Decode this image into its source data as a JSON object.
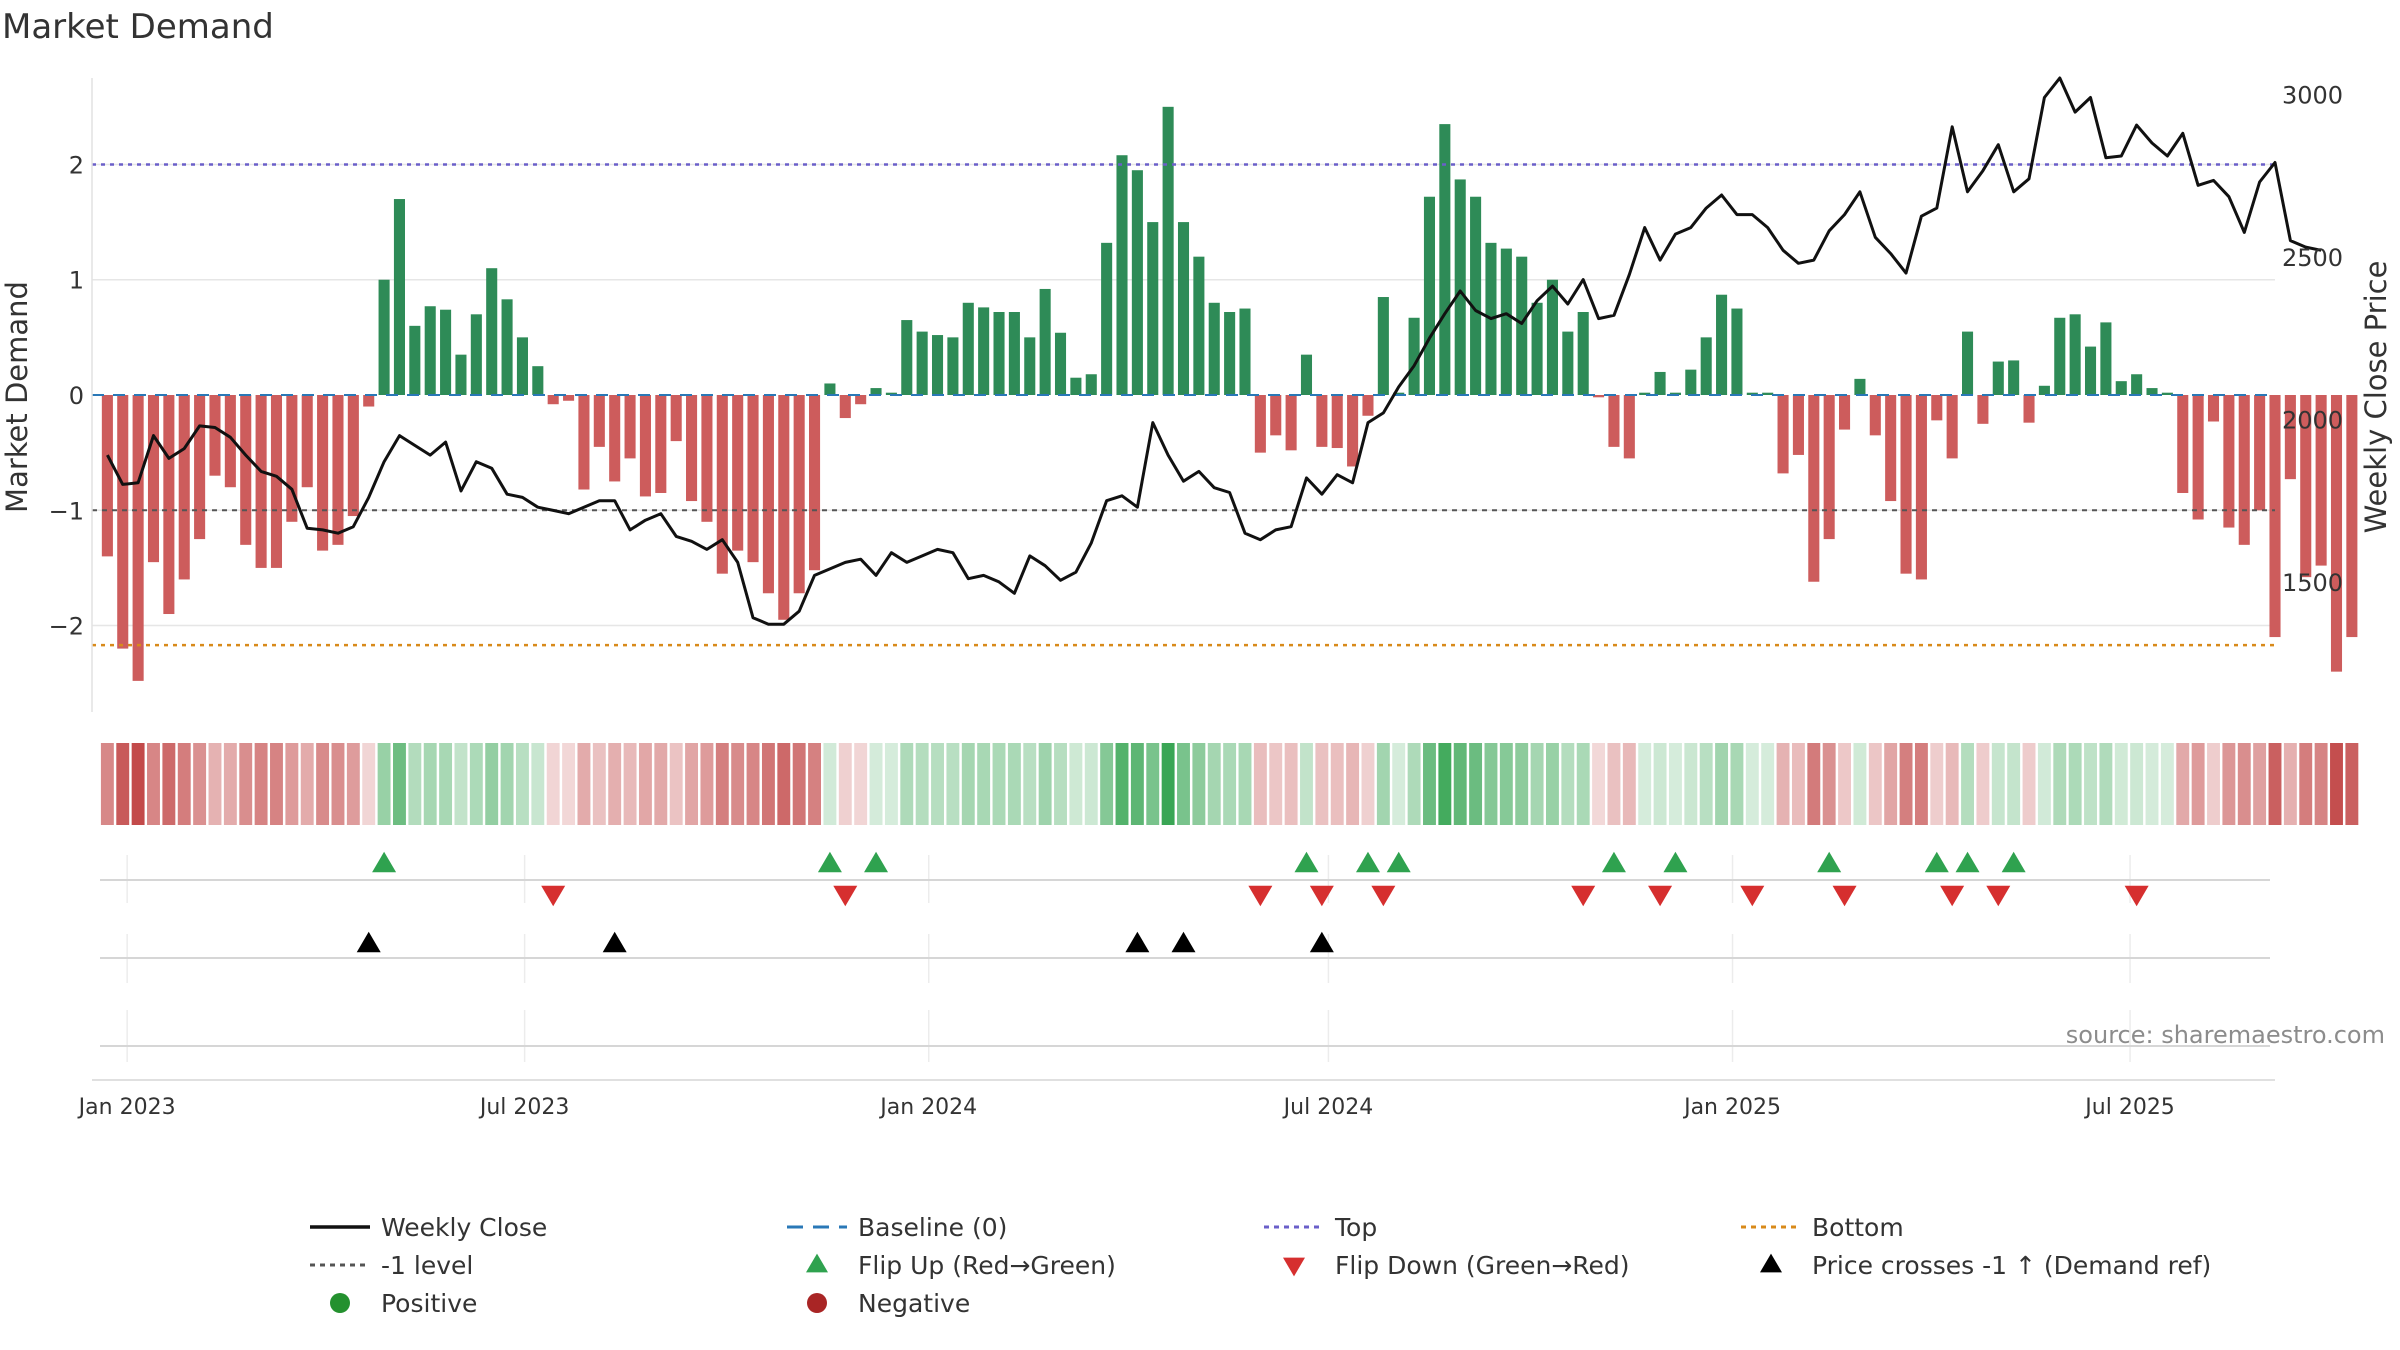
{
  "chart_data": {
    "type": "bar+line",
    "title": "Market Demand",
    "ylabel_left": "Market Demand",
    "ylabel_right": "Weekly Close Price",
    "ylim_left": [
      -2.75,
      2.75
    ],
    "ylim_right": [
      1100,
      3050
    ],
    "y_ticks_left": [
      2,
      1,
      0,
      -1,
      -2
    ],
    "y_tick_labels_left": [
      "2",
      "1",
      "0",
      "−1",
      "−2"
    ],
    "y_ticks_right": [
      3000,
      2500,
      2000,
      1500
    ],
    "y_tick_labels_right": [
      "3000",
      "2500",
      "2000",
      "1500"
    ],
    "x_start_date": "2022-12-23",
    "x_step_days": 7,
    "x_range": [
      "2022-12-16",
      "2025-09-05"
    ],
    "x_ticks": [
      {
        "date": "2023-01-01",
        "label": "Jan 2023"
      },
      {
        "date": "2023-07-01",
        "label": "Jul 2023"
      },
      {
        "date": "2024-01-01",
        "label": "Jan 2024"
      },
      {
        "date": "2024-07-01",
        "label": "Jul 2024"
      },
      {
        "date": "2025-01-01",
        "label": "Jan 2025"
      },
      {
        "date": "2025-07-01",
        "label": "Jul 2025"
      }
    ],
    "reference_lines": {
      "top": 2.0,
      "bottom": -2.17,
      "minus_one": -1.0,
      "baseline": 0
    },
    "demand": [
      -1.4,
      -2.2,
      -2.48,
      -1.45,
      -1.9,
      -1.6,
      -1.25,
      -0.7,
      -0.8,
      -1.3,
      -1.5,
      -1.5,
      -1.1,
      -0.8,
      -1.35,
      -1.3,
      -1.05,
      -0.1,
      1.0,
      1.7,
      0.6,
      0.77,
      0.74,
      0.35,
      0.7,
      1.1,
      0.83,
      0.5,
      0.25,
      -0.08,
      -0.05,
      -0.82,
      -0.45,
      -0.75,
      -0.55,
      -0.88,
      -0.85,
      -0.4,
      -0.92,
      -1.1,
      -1.55,
      -1.35,
      -1.45,
      -1.72,
      -1.95,
      -1.72,
      -1.52,
      0.1,
      -0.2,
      -0.08,
      0.06,
      0.02,
      0.65,
      0.55,
      0.52,
      0.5,
      0.8,
      0.76,
      0.72,
      0.72,
      0.5,
      0.92,
      0.54,
      0.15,
      0.18,
      1.32,
      2.08,
      1.95,
      1.5,
      2.5,
      1.5,
      1.2,
      0.8,
      0.72,
      0.75,
      -0.5,
      -0.35,
      -0.48,
      0.35,
      -0.45,
      -0.46,
      -0.62,
      -0.18,
      0.85,
      0.02,
      0.67,
      1.72,
      2.35,
      1.87,
      1.72,
      1.32,
      1.27,
      1.2,
      0.8,
      1.0,
      0.55,
      0.72,
      -0.02,
      -0.45,
      -0.55,
      0.02,
      0.2,
      0.02,
      0.22,
      0.5,
      0.87,
      0.75,
      0.02,
      0.02,
      -0.68,
      -0.52,
      -1.62,
      -1.25,
      -0.3,
      0.14,
      -0.35,
      -0.92,
      -1.55,
      -1.6,
      -0.22,
      -0.55,
      0.55,
      -0.25,
      0.29,
      0.3,
      -0.24,
      0.08,
      0.67,
      0.7,
      0.42,
      0.63,
      0.12,
      0.18,
      0.06,
      0.02,
      -0.85,
      -1.08,
      -0.23,
      -1.15,
      -1.3,
      -1.0,
      -2.1,
      -0.73,
      -1.58,
      -1.48,
      -2.4,
      -2.1
    ],
    "close": [
      1890,
      1800,
      1805,
      1950,
      1880,
      1910,
      1980,
      1975,
      1945,
      1890,
      1840,
      1825,
      1785,
      1665,
      1660,
      1650,
      1670,
      1760,
      1870,
      1950,
      1920,
      1890,
      1930,
      1780,
      1870,
      1850,
      1770,
      1760,
      1730,
      1720,
      1710,
      1730,
      1750,
      1750,
      1660,
      1690,
      1710,
      1640,
      1625,
      1600,
      1630,
      1560,
      1390,
      1370,
      1370,
      1410,
      1520,
      1540,
      1560,
      1570,
      1520,
      1590,
      1560,
      1580,
      1600,
      1590,
      1510,
      1520,
      1500,
      1465,
      1580,
      1550,
      1505,
      1530,
      1620,
      1750,
      1765,
      1730,
      1990,
      1890,
      1810,
      1840,
      1790,
      1775,
      1650,
      1630,
      1660,
      1670,
      1820,
      1770,
      1830,
      1805,
      1990,
      2020,
      2100,
      2165,
      2250,
      2325,
      2395,
      2335,
      2310,
      2325,
      2295,
      2365,
      2410,
      2355,
      2430,
      2310,
      2320,
      2445,
      2590,
      2490,
      2570,
      2590,
      2650,
      2690,
      2630,
      2630,
      2590,
      2520,
      2480,
      2490,
      2580,
      2630,
      2700,
      2560,
      2510,
      2450,
      2625,
      2650,
      2900,
      2700,
      2765,
      2845,
      2700,
      2740,
      2990,
      3050,
      2945,
      2990,
      2805,
      2810,
      2905,
      2850,
      2810,
      2880,
      2720,
      2735,
      2685,
      2575,
      2730,
      2790,
      2550,
      2530,
      2520
    ],
    "heat_strip": "weekly demand coloured green (positive) / red (negative), intensity by magnitude",
    "flip_up_weeks": [
      18,
      47,
      50,
      78,
      82,
      84,
      98,
      102,
      112,
      119,
      121,
      124
    ],
    "flip_down_weeks": [
      29,
      48,
      75,
      79,
      83,
      96,
      101,
      107,
      113,
      120,
      123,
      132
    ],
    "price_cross_weeks": [
      17,
      33,
      67,
      70,
      79
    ],
    "source_text": "source: sharemaestro.com",
    "legend": [
      {
        "label": "Weekly Close",
        "kind": "line",
        "color": "#111111"
      },
      {
        "label": "Baseline (0)",
        "kind": "dash",
        "color": "#2a78b7"
      },
      {
        "label": "Top",
        "kind": "dot",
        "color": "#6a5fc9"
      },
      {
        "label": "Bottom",
        "kind": "dot",
        "color": "#d88a1a"
      },
      {
        "label": "-1 level",
        "kind": "dot",
        "color": "#555555"
      },
      {
        "label": "Flip Up (Red→Green)",
        "kind": "tri-up",
        "color": "#2fa24f"
      },
      {
        "label": "Flip Down (Green→Red)",
        "kind": "tri-down",
        "color": "#d62f2f"
      },
      {
        "label": "Price crosses -1 ↑ (Demand ref)",
        "kind": "tri-up",
        "color": "#000000"
      },
      {
        "label": "Positive",
        "kind": "circle",
        "color": "#24912f"
      },
      {
        "label": "Negative",
        "kind": "circle",
        "color": "#a92525"
      }
    ],
    "colors": {
      "positive_bar": "#2e8b57",
      "negative_bar": "#cd5c5c",
      "close_line": "#111111",
      "grid": "#e6e6e6"
    }
  }
}
